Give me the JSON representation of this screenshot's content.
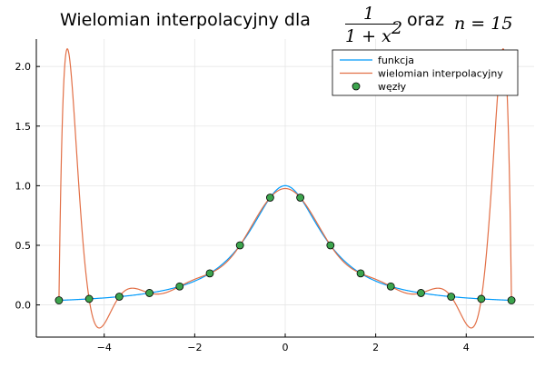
{
  "chart_data": {
    "type": "line",
    "title": {
      "prefix": "Wielomian interpolacyjny dla",
      "fraction_numerator": "1",
      "fraction_denominator": "1 + x",
      "fraction_denominator_exponent": "2",
      "middle": "oraz",
      "n_expression": "n = 15"
    },
    "xlabel": "",
    "ylabel": "",
    "xlim": [
      -5.5,
      5.5
    ],
    "ylim": [
      -0.27,
      2.23
    ],
    "x_ticks": [
      -4,
      -2,
      0,
      2,
      4
    ],
    "x_tick_labels": [
      "−4",
      "−2",
      "0",
      "2",
      "4"
    ],
    "y_ticks": [
      0.0,
      0.5,
      1.0,
      1.5,
      2.0
    ],
    "y_tick_labels": [
      "0.0",
      "0.5",
      "1.0",
      "1.5",
      "2.0"
    ],
    "grid": true,
    "legend_position": "top-right",
    "series": [
      {
        "name": "funkcja",
        "kind": "line",
        "color": "#009AFA",
        "function": "1/(1+x^2)",
        "domain": [
          -5,
          5
        ]
      },
      {
        "name": "wielomian interpolacyjny",
        "kind": "line",
        "color": "#E26F46",
        "description_points": "polynomial through the nodes",
        "domain": [
          -5,
          5
        ]
      },
      {
        "name": "węzły",
        "kind": "scatter",
        "color": "#3DA44D",
        "x": [
          -5.0,
          -4.3333,
          -3.6667,
          -3.0,
          -2.3333,
          -1.6667,
          -1.0,
          -0.3333,
          0.3333,
          1.0,
          1.6667,
          2.3333,
          3.0,
          3.6667,
          4.3333,
          5.0
        ],
        "y": [
          0.0385,
          0.0505,
          0.0692,
          0.1,
          0.1552,
          0.2647,
          0.5,
          0.9,
          0.9,
          0.5,
          0.2647,
          0.1552,
          0.1,
          0.0692,
          0.0505,
          0.0385
        ]
      }
    ]
  }
}
